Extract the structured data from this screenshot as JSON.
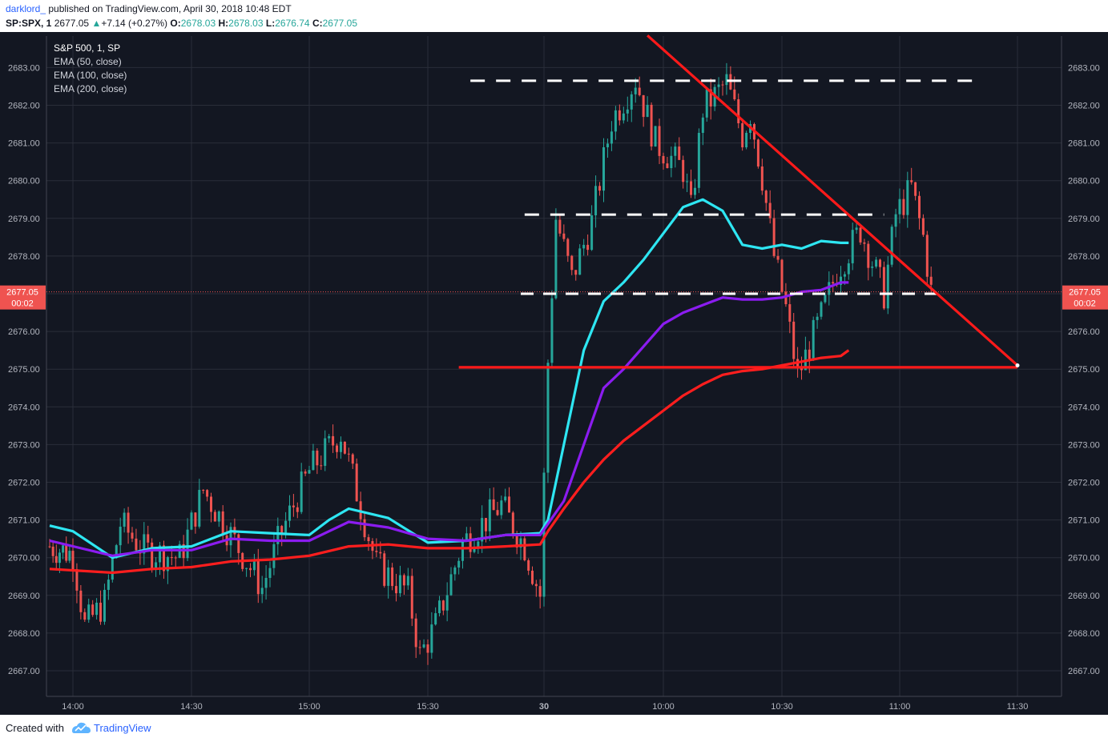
{
  "header": {
    "author": "darklord_",
    "published": "published on TradingView.com, April 30, 2018 10:48 EDT",
    "symbol": "SP:SPX, 1",
    "last": "2677.05",
    "change_arrow": "▲",
    "change": "+7.14 (+0.27%)",
    "o_label": "O:",
    "o_value": "2678.03",
    "h_label": "H:",
    "h_value": "2678.03",
    "l_label": "L:",
    "l_value": "2676.74",
    "c_label": "C:",
    "c_value": "2677.05"
  },
  "legend": {
    "title": "S&P 500, 1, SP",
    "items": [
      "EMA (50, close)",
      "EMA (100, close)",
      "EMA (200, close)"
    ]
  },
  "footer": {
    "created_with": "Created with",
    "brand": "TradingView"
  },
  "colors": {
    "background": "#131722",
    "grid": "#2a2e39",
    "up": "#26a69a",
    "down": "#ef5350",
    "ema50": "#2ee6f2",
    "ema100": "#8b1cf0",
    "ema200": "#ff1e1e",
    "drawings_red": "#ff1a1a",
    "drawings_white": "#ffffff",
    "price_tag": "#ef5350"
  },
  "chart_data": {
    "type": "candlestick",
    "title": "S&P 500, 1, SP",
    "x_ticks": [
      "14:00",
      "14:30",
      "15:00",
      "15:30",
      "30",
      "10:00",
      "10:30",
      "11:00",
      "11:30"
    ],
    "y_ticks": [
      "2667.00",
      "2668.00",
      "2669.00",
      "2670.00",
      "2671.00",
      "2672.00",
      "2673.00",
      "2674.00",
      "2675.00",
      "2676.00",
      "2677.00",
      "2678.00",
      "2679.00",
      "2680.00",
      "2681.00",
      "2682.00",
      "2683.00"
    ],
    "ylim": [
      2666.5,
      2683.55
    ],
    "grid": true,
    "last_price": {
      "value": 2677.05,
      "label": "2677.05",
      "countdown": "00:02"
    },
    "candle_summary": "1-minute S&P 500 candles from ~13:53 (Apr 27) through 10:48 (Apr 30). Range 2667.2–2682.9.",
    "ema_series": [
      {
        "name": "EMA (50, close)",
        "time": [
          "13:53",
          "14:00",
          "14:10",
          "14:20",
          "14:30",
          "14:40",
          "14:50",
          "15:00",
          "15:05",
          "15:10",
          "15:20",
          "15:30",
          "15:40",
          "15:50",
          "15:59",
          "09:31",
          "09:35",
          "09:40",
          "09:45",
          "09:50",
          "09:55",
          "10:00",
          "10:05",
          "10:10",
          "10:15",
          "10:20",
          "10:25",
          "10:30",
          "10:35",
          "10:40",
          "10:45",
          "10:47"
        ],
        "values": [
          2670.85,
          2670.7,
          2670.0,
          2670.25,
          2670.3,
          2670.7,
          2670.65,
          2670.6,
          2671.0,
          2671.3,
          2671.05,
          2670.4,
          2670.45,
          2670.6,
          2670.65,
          2671.0,
          2673.0,
          2675.5,
          2676.8,
          2677.3,
          2677.9,
          2678.6,
          2679.3,
          2679.5,
          2679.2,
          2678.3,
          2678.2,
          2678.3,
          2678.2,
          2678.4,
          2678.35,
          2678.35
        ]
      },
      {
        "name": "EMA (100, close)",
        "time": [
          "13:53",
          "14:10",
          "14:20",
          "14:30",
          "14:40",
          "14:50",
          "15:00",
          "15:05",
          "15:10",
          "15:20",
          "15:30",
          "15:40",
          "15:50",
          "15:59",
          "09:31",
          "09:35",
          "09:40",
          "09:45",
          "09:50",
          "09:55",
          "10:00",
          "10:05",
          "10:10",
          "10:15",
          "10:20",
          "10:25",
          "10:30",
          "10:35",
          "10:40",
          "10:45",
          "10:47"
        ],
        "values": [
          2670.45,
          2670.05,
          2670.2,
          2670.2,
          2670.5,
          2670.45,
          2670.45,
          2670.7,
          2670.95,
          2670.8,
          2670.5,
          2670.45,
          2670.6,
          2670.6,
          2670.9,
          2671.5,
          2673.0,
          2674.5,
          2675.0,
          2675.6,
          2676.2,
          2676.5,
          2676.7,
          2676.9,
          2676.85,
          2676.85,
          2676.9,
          2677.05,
          2677.1,
          2677.3,
          2677.3
        ]
      },
      {
        "name": "EMA (200, close)",
        "time": [
          "13:53",
          "14:10",
          "14:20",
          "14:30",
          "14:40",
          "14:50",
          "15:00",
          "15:10",
          "15:20",
          "15:30",
          "15:40",
          "15:50",
          "15:59",
          "09:31",
          "09:35",
          "09:40",
          "09:45",
          "09:50",
          "09:55",
          "10:00",
          "10:05",
          "10:10",
          "10:15",
          "10:20",
          "10:25",
          "10:30",
          "10:35",
          "10:40",
          "10:45",
          "10:47"
        ],
        "values": [
          2669.7,
          2669.6,
          2669.7,
          2669.75,
          2669.9,
          2669.95,
          2670.05,
          2670.3,
          2670.35,
          2670.25,
          2670.25,
          2670.3,
          2670.35,
          2670.7,
          2671.3,
          2672.0,
          2672.6,
          2673.1,
          2673.5,
          2673.9,
          2674.3,
          2674.6,
          2674.85,
          2674.95,
          2675.0,
          2675.1,
          2675.2,
          2675.3,
          2675.35,
          2675.5
        ]
      }
    ],
    "drawings": {
      "resistance_dashed": {
        "price": 2682.65,
        "color": "#ffffff",
        "from": "15:41",
        "to": "11:19"
      },
      "mid_dashed": {
        "price": 2679.1,
        "color": "#ffffff",
        "from": "15:55",
        "to": "10:56"
      },
      "low_dashed": {
        "price": 2677.0,
        "color": "#ffffff",
        "from": "15:54",
        "to": "11:12"
      },
      "support_line": {
        "price": 2675.05,
        "color": "#ff1a1a",
        "from": "15:38",
        "to": "11:30"
      },
      "descending_trendline": {
        "color": "#ff1a1a",
        "from": {
          "time": "09:56",
          "price": 2683.85
        },
        "to": {
          "time": "11:30",
          "price": 2675.1
        }
      }
    }
  }
}
